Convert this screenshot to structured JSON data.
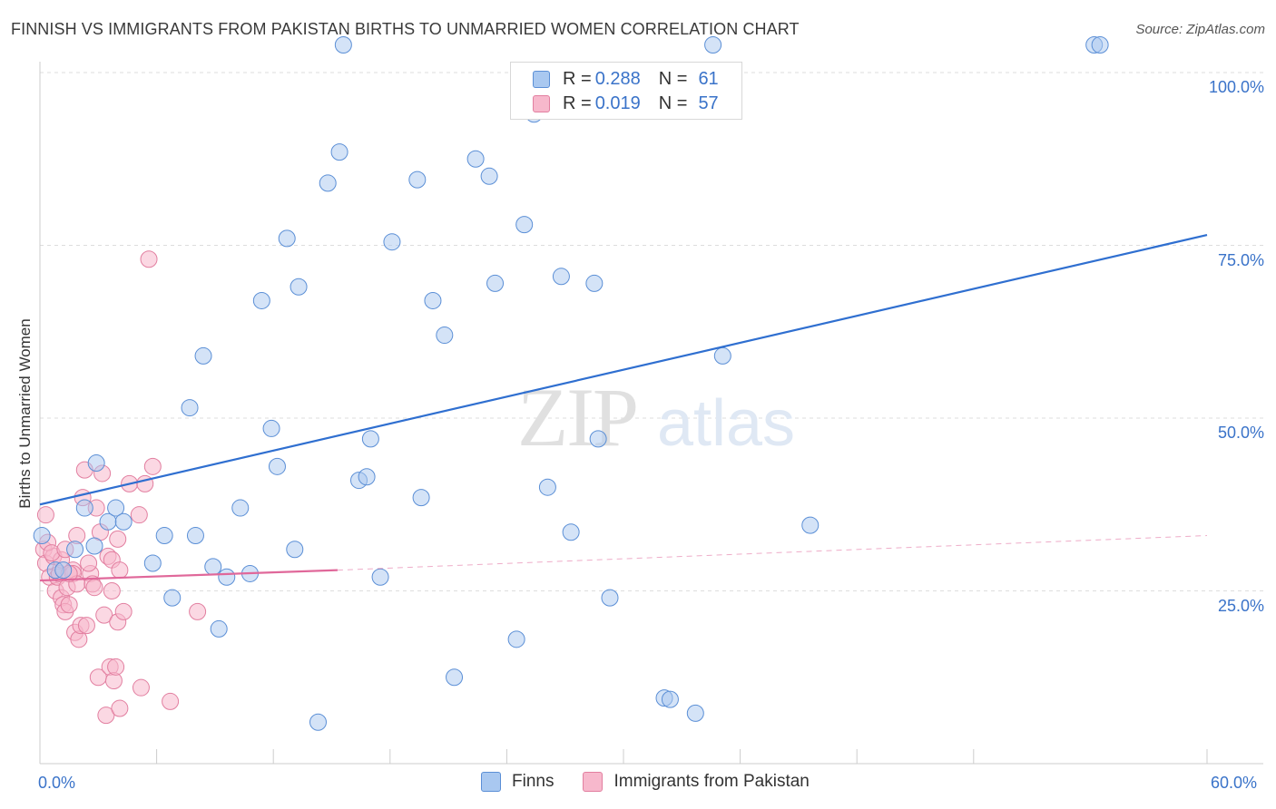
{
  "header": {
    "title": "FINNISH VS IMMIGRANTS FROM PAKISTAN BIRTHS TO UNMARRIED WOMEN CORRELATION CHART",
    "source": "Source: ZipAtlas.com"
  },
  "watermark": {
    "text_zip": "ZIP",
    "text_atlas": "atlas"
  },
  "legend": {
    "rows": [
      {
        "r_label": "R = ",
        "r_value": "0.288",
        "n_label": "N = ",
        "n_value": "61",
        "color": "#a9c8f0"
      },
      {
        "r_label": "R = ",
        "r_value": "0.019",
        "n_label": "N = ",
        "n_value": "57",
        "color": "#f7b8cc"
      }
    ]
  },
  "bottom_legend": {
    "items": [
      {
        "label": "Finns",
        "color": "#a9c8f0"
      },
      {
        "label": "Immigrants from Pakistan",
        "color": "#f7b8cc"
      }
    ]
  },
  "colors": {
    "finns_fill": "#a9c8f0",
    "finns_stroke": "#5b8fd6",
    "finns_line": "#2f6fd0",
    "pak_fill": "#f7b8cc",
    "pak_stroke": "#e27fa0",
    "pak_line": "#e0689a",
    "axis_text": "#3a73c9",
    "grid": "#dddddd"
  },
  "chart_data": {
    "type": "scatter",
    "title": "FINNISH VS IMMIGRANTS FROM PAKISTAN BIRTHS TO UNMARRIED WOMEN CORRELATION CHART",
    "xlabel": "",
    "ylabel": "Births to Unmarried Women",
    "xlim": [
      0,
      60
    ],
    "ylim": [
      0,
      105
    ],
    "x_tick_labels": [
      {
        "value": 0,
        "label": "0.0%"
      },
      {
        "value": 60,
        "label": "60.0%"
      }
    ],
    "x_minor_ticks": [
      6,
      12,
      18,
      24,
      30,
      36,
      42,
      48,
      60
    ],
    "y_ticks": [
      {
        "value": 25,
        "label": "25.0%"
      },
      {
        "value": 50,
        "label": "50.0%"
      },
      {
        "value": 75,
        "label": "75.0%"
      },
      {
        "value": 100,
        "label": "100.0%"
      }
    ],
    "grid": true,
    "series": [
      {
        "name": "Finns",
        "color": "#a9c8f0",
        "trend": {
          "x": [
            0,
            60
          ],
          "y": [
            37.5,
            76.5
          ],
          "dashed": false
        },
        "points": [
          [
            0.1,
            33
          ],
          [
            0.8,
            28
          ],
          [
            1.2,
            28
          ],
          [
            1.8,
            31
          ],
          [
            2.3,
            37
          ],
          [
            2.8,
            31.5
          ],
          [
            2.9,
            43.5
          ],
          [
            3.5,
            35
          ],
          [
            3.9,
            37
          ],
          [
            4.3,
            35
          ],
          [
            5.8,
            29
          ],
          [
            6.4,
            33
          ],
          [
            6.8,
            24
          ],
          [
            7.7,
            51.5
          ],
          [
            8.0,
            33
          ],
          [
            8.4,
            59
          ],
          [
            8.9,
            28.5
          ],
          [
            9.2,
            19.5
          ],
          [
            9.6,
            27
          ],
          [
            10.3,
            37
          ],
          [
            10.8,
            27.5
          ],
          [
            11.4,
            67
          ],
          [
            11.9,
            48.5
          ],
          [
            12.2,
            43
          ],
          [
            12.7,
            76
          ],
          [
            13.1,
            31
          ],
          [
            13.3,
            69
          ],
          [
            14.3,
            6
          ],
          [
            14.8,
            84
          ],
          [
            15.6,
            104
          ],
          [
            15.4,
            88.5
          ],
          [
            16.4,
            41
          ],
          [
            16.8,
            41.5
          ],
          [
            17.0,
            47
          ],
          [
            17.5,
            27
          ],
          [
            18.1,
            75.5
          ],
          [
            19.4,
            84.5
          ],
          [
            19.6,
            38.5
          ],
          [
            20.2,
            67
          ],
          [
            20.8,
            62
          ],
          [
            21.3,
            12.5
          ],
          [
            22.4,
            87.5
          ],
          [
            23.1,
            85
          ],
          [
            23.4,
            69.5
          ],
          [
            24.9,
            78
          ],
          [
            24.5,
            18
          ],
          [
            25.4,
            94
          ],
          [
            26.1,
            40
          ],
          [
            26.8,
            70.5
          ],
          [
            27.3,
            33.5
          ],
          [
            28.5,
            69.5
          ],
          [
            28.7,
            47
          ],
          [
            29.3,
            24
          ],
          [
            32.1,
            9.5
          ],
          [
            32.4,
            9.3
          ],
          [
            33.7,
            7.3
          ],
          [
            34.6,
            104
          ],
          [
            35.1,
            59
          ],
          [
            39.6,
            34.5
          ],
          [
            54.2,
            104
          ],
          [
            54.5,
            104
          ]
        ]
      },
      {
        "name": "Immigrants from Pakistan",
        "color": "#f7b8cc",
        "trend": {
          "x": [
            0,
            15.3
          ],
          "y": [
            26.5,
            28
          ],
          "dashed": false,
          "dashed_extension_to": [
            60,
            33
          ]
        },
        "points": [
          [
            0.2,
            31
          ],
          [
            0.3,
            36
          ],
          [
            0.3,
            29
          ],
          [
            0.5,
            27
          ],
          [
            0.7,
            30
          ],
          [
            0.8,
            25
          ],
          [
            0.9,
            27
          ],
          [
            1.0,
            27.5
          ],
          [
            1.1,
            29.5
          ],
          [
            1.1,
            24
          ],
          [
            1.2,
            23
          ],
          [
            1.3,
            22
          ],
          [
            1.4,
            25.5
          ],
          [
            1.5,
            23
          ],
          [
            1.7,
            28
          ],
          [
            1.7,
            27.5
          ],
          [
            1.8,
            19
          ],
          [
            1.9,
            26
          ],
          [
            2.0,
            18
          ],
          [
            2.1,
            20
          ],
          [
            2.2,
            38.5
          ],
          [
            2.3,
            42.5
          ],
          [
            2.4,
            20
          ],
          [
            2.6,
            27.5
          ],
          [
            2.7,
            26
          ],
          [
            2.8,
            25.5
          ],
          [
            2.9,
            37
          ],
          [
            3.0,
            12.5
          ],
          [
            3.1,
            33.5
          ],
          [
            3.2,
            42
          ],
          [
            3.3,
            21.5
          ],
          [
            3.4,
            7
          ],
          [
            3.5,
            30
          ],
          [
            3.6,
            14
          ],
          [
            3.7,
            29.5
          ],
          [
            3.8,
            12
          ],
          [
            3.9,
            14
          ],
          [
            4.0,
            20.5
          ],
          [
            4.0,
            32.5
          ],
          [
            4.1,
            8
          ],
          [
            4.1,
            28
          ],
          [
            4.3,
            22
          ],
          [
            4.6,
            40.5
          ],
          [
            5.1,
            36
          ],
          [
            5.2,
            11
          ],
          [
            5.4,
            40.5
          ],
          [
            5.6,
            73
          ],
          [
            5.8,
            43
          ],
          [
            6.7,
            9
          ],
          [
            8.1,
            22
          ],
          [
            0.4,
            32
          ],
          [
            0.6,
            30.5
          ],
          [
            1.5,
            27.5
          ],
          [
            2.5,
            29
          ],
          [
            3.7,
            25
          ],
          [
            1.9,
            33
          ],
          [
            1.3,
            31
          ]
        ]
      }
    ]
  }
}
